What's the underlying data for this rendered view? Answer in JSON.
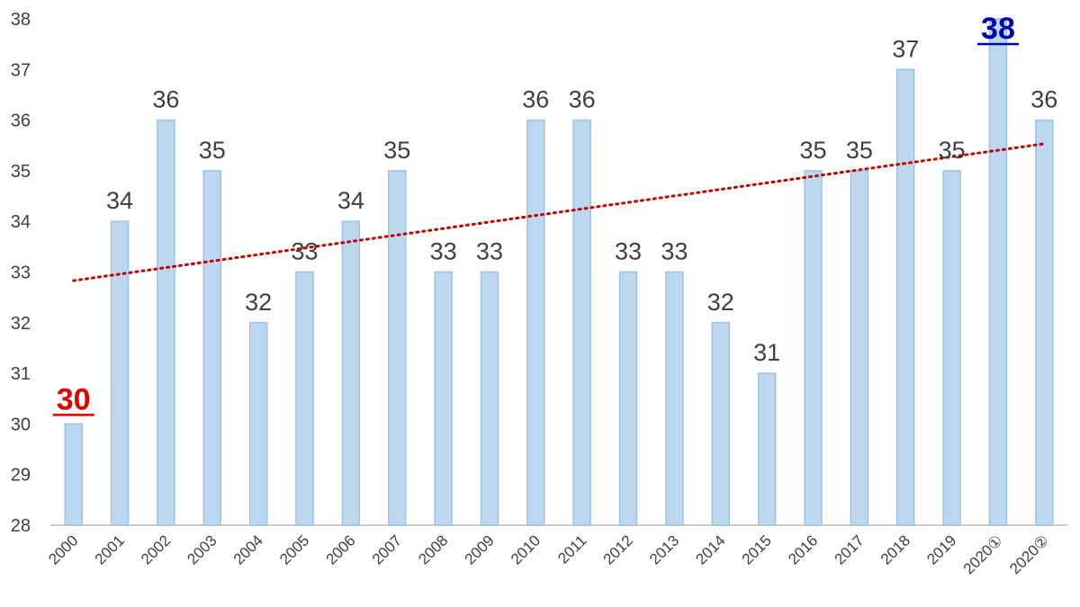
{
  "chart_data": {
    "type": "bar",
    "title": "",
    "xlabel": "",
    "ylabel": "",
    "categories": [
      "2000",
      "2001",
      "2002",
      "2003",
      "2004",
      "2005",
      "2006",
      "2007",
      "2008",
      "2009",
      "2010",
      "2011",
      "2012",
      "2013",
      "2014",
      "2015",
      "2016",
      "2017",
      "2018",
      "2019",
      "2020①",
      "2020②"
    ],
    "values": [
      30,
      34,
      36,
      35,
      32,
      33,
      34,
      35,
      33,
      33,
      36,
      36,
      33,
      33,
      32,
      31,
      35,
      35,
      37,
      35,
      38,
      36
    ],
    "data_labels": [
      "30",
      "34",
      "36",
      "35",
      "32",
      "33",
      "34",
      "35",
      "33",
      "33",
      "36",
      "36",
      "33",
      "33",
      "32",
      "31",
      "35",
      "35",
      "37",
      "35",
      "38",
      "36"
    ],
    "ylim": [
      28,
      38
    ],
    "yticks": [
      "28",
      "29",
      "30",
      "31",
      "32",
      "33",
      "34",
      "35",
      "36",
      "37",
      "38"
    ],
    "grid": false,
    "legend": "none",
    "trendline": {
      "type": "linear",
      "style": "dotted",
      "color": "#c00000"
    },
    "highlights": [
      {
        "index": 0,
        "label": "30",
        "color": "#e00000",
        "style": "bold-underline"
      },
      {
        "index": 20,
        "label": "38",
        "color": "#0000b0",
        "style": "bold-underline"
      }
    ],
    "colors": {
      "bar_fill": "#bdd7ee",
      "bar_stroke": "#9dc3e6",
      "axis": "#bfbfbf",
      "text": "#404040"
    }
  }
}
